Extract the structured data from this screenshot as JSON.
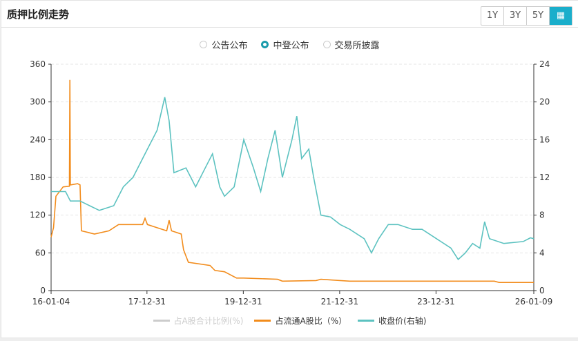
{
  "header": {
    "title": "质押比例走势",
    "ranges": [
      "1Y",
      "3Y",
      "5Y"
    ],
    "calendar_icon": "calendar-icon"
  },
  "radios": [
    {
      "label": "公告公布",
      "checked": false
    },
    {
      "label": "中登公布",
      "checked": true
    },
    {
      "label": "交易所披露",
      "checked": false
    }
  ],
  "colors": {
    "accent": "#1aaecb",
    "pledge": "#f28c1c",
    "price": "#5cc2c0",
    "total": "#cccccc"
  },
  "chart_data": {
    "type": "line",
    "x_ticks": [
      "16-01-04",
      "17-12-31",
      "19-12-31",
      "21-12-31",
      "23-12-31",
      "26-01-09"
    ],
    "y_left": {
      "ticks": [
        0,
        60,
        120,
        180,
        240,
        300,
        360
      ],
      "range": [
        0,
        360
      ]
    },
    "y_right": {
      "ticks": [
        0,
        4,
        8,
        12,
        16,
        20,
        24
      ],
      "range": [
        0,
        24
      ]
    },
    "legend": [
      {
        "name": "占A股合计比例(%)",
        "disabled": true
      },
      {
        "name": "占流通A股比（%）"
      },
      {
        "name": "收盘价(右轴)"
      }
    ],
    "series": [
      {
        "name": "占流通A股比（%）",
        "axis": "left",
        "points": [
          [
            2016.0,
            85
          ],
          [
            2016.05,
            100
          ],
          [
            2016.1,
            150
          ],
          [
            2016.25,
            165
          ],
          [
            2016.38,
            166
          ],
          [
            2016.39,
            335
          ],
          [
            2016.4,
            168
          ],
          [
            2016.55,
            170
          ],
          [
            2016.6,
            168
          ],
          [
            2016.63,
            95
          ],
          [
            2016.9,
            90
          ],
          [
            2017.2,
            95
          ],
          [
            2017.4,
            105
          ],
          [
            2017.9,
            105
          ],
          [
            2017.95,
            115
          ],
          [
            2018.0,
            105
          ],
          [
            2018.2,
            100
          ],
          [
            2018.4,
            95
          ],
          [
            2018.45,
            112
          ],
          [
            2018.5,
            95
          ],
          [
            2018.7,
            90
          ],
          [
            2018.75,
            65
          ],
          [
            2018.85,
            45
          ],
          [
            2019.3,
            40
          ],
          [
            2019.4,
            32
          ],
          [
            2019.6,
            30
          ],
          [
            2019.85,
            20
          ],
          [
            2020.0,
            20
          ],
          [
            2020.7,
            18
          ],
          [
            2020.8,
            15
          ],
          [
            2021.5,
            16
          ],
          [
            2021.6,
            18
          ],
          [
            2022.0,
            16
          ],
          [
            2022.2,
            15
          ],
          [
            2025.2,
            15
          ],
          [
            2025.3,
            13
          ],
          [
            2026.02,
            13
          ]
        ]
      },
      {
        "name": "收盘价(右轴)",
        "axis": "right",
        "points": [
          [
            2016.0,
            10.5
          ],
          [
            2016.3,
            10.5
          ],
          [
            2016.4,
            9.5
          ],
          [
            2016.6,
            9.5
          ],
          [
            2016.8,
            9.0
          ],
          [
            2017.0,
            8.5
          ],
          [
            2017.3,
            9
          ],
          [
            2017.5,
            11
          ],
          [
            2017.7,
            12
          ],
          [
            2017.9,
            14
          ],
          [
            2018.0,
            15
          ],
          [
            2018.2,
            17
          ],
          [
            2018.36,
            20.5
          ],
          [
            2018.45,
            18
          ],
          [
            2018.55,
            12.5
          ],
          [
            2018.8,
            13
          ],
          [
            2019.0,
            11
          ],
          [
            2019.2,
            13
          ],
          [
            2019.35,
            14.5
          ],
          [
            2019.5,
            11
          ],
          [
            2019.6,
            10
          ],
          [
            2019.8,
            11
          ],
          [
            2020.0,
            16
          ],
          [
            2020.2,
            13
          ],
          [
            2020.35,
            10.5
          ],
          [
            2020.5,
            14
          ],
          [
            2020.65,
            17
          ],
          [
            2020.8,
            12
          ],
          [
            2021.0,
            16
          ],
          [
            2021.1,
            18.5
          ],
          [
            2021.2,
            14
          ],
          [
            2021.35,
            15
          ],
          [
            2021.45,
            12
          ],
          [
            2021.6,
            8
          ],
          [
            2021.8,
            7.8
          ],
          [
            2022.0,
            7
          ],
          [
            2022.2,
            6.5
          ],
          [
            2022.5,
            5.5
          ],
          [
            2022.65,
            4.0
          ],
          [
            2022.8,
            5.5
          ],
          [
            2023.0,
            7
          ],
          [
            2023.2,
            7
          ],
          [
            2023.5,
            6.5
          ],
          [
            2023.7,
            6.5
          ],
          [
            2024.0,
            5.5
          ],
          [
            2024.3,
            4.5
          ],
          [
            2024.45,
            3.3
          ],
          [
            2024.6,
            4.0
          ],
          [
            2024.75,
            5.0
          ],
          [
            2024.9,
            4.5
          ],
          [
            2025.0,
            7.3
          ],
          [
            2025.1,
            5.5
          ],
          [
            2025.4,
            5.0
          ],
          [
            2025.8,
            5.2
          ],
          [
            2025.95,
            5.6
          ],
          [
            2026.02,
            5.5
          ]
        ]
      }
    ]
  }
}
